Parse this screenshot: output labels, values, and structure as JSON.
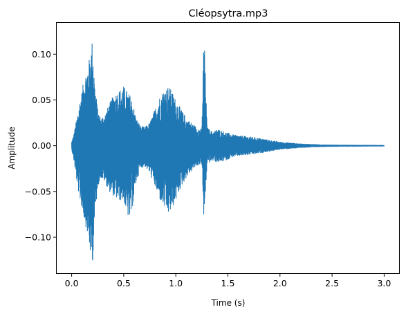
{
  "chart_data": {
    "type": "line",
    "title": "Cléopsytra.mp3",
    "xlabel": "Time (s)",
    "ylabel": "Amplitude",
    "xlim": [
      -0.15,
      3.15
    ],
    "ylim": [
      -0.14,
      0.135
    ],
    "xticks": [
      {
        "value": 0.0,
        "label": "0.0"
      },
      {
        "value": 0.5,
        "label": "0.5"
      },
      {
        "value": 1.0,
        "label": "1.0"
      },
      {
        "value": 1.5,
        "label": "1.5"
      },
      {
        "value": 2.0,
        "label": "2.0"
      },
      {
        "value": 2.5,
        "label": "2.5"
      },
      {
        "value": 3.0,
        "label": "3.0"
      }
    ],
    "yticks": [
      {
        "value": -0.1,
        "label": "−0.10"
      },
      {
        "value": -0.05,
        "label": "−0.05"
      },
      {
        "value": 0.0,
        "label": "0.00"
      },
      {
        "value": 0.05,
        "label": "0.05"
      },
      {
        "value": 0.1,
        "label": "0.10"
      }
    ],
    "grid": false,
    "legend": "none",
    "series": [
      {
        "color": "#1f77b4",
        "envelope": {
          "t": [
            0.0,
            0.02,
            0.05,
            0.08,
            0.1,
            0.12,
            0.15,
            0.18,
            0.2,
            0.22,
            0.25,
            0.28,
            0.32,
            0.36,
            0.4,
            0.45,
            0.5,
            0.53,
            0.56,
            0.58,
            0.62,
            0.66,
            0.7,
            0.75,
            0.8,
            0.85,
            0.9,
            0.93,
            0.96,
            1.0,
            1.05,
            1.1,
            1.15,
            1.2,
            1.25,
            1.27,
            1.3,
            1.35,
            1.4,
            1.45,
            1.5,
            1.55,
            1.6,
            1.7,
            1.8,
            1.9,
            2.0,
            2.1,
            2.2,
            2.3,
            2.4,
            2.5,
            2.7,
            3.0
          ],
          "upper": [
            0.004,
            0.012,
            0.03,
            0.05,
            0.06,
            0.075,
            0.085,
            0.1,
            0.118,
            0.07,
            0.04,
            0.03,
            0.035,
            0.045,
            0.055,
            0.06,
            0.065,
            0.06,
            0.055,
            0.05,
            0.03,
            0.022,
            0.02,
            0.025,
            0.04,
            0.055,
            0.063,
            0.065,
            0.06,
            0.05,
            0.04,
            0.03,
            0.025,
            0.02,
            0.018,
            0.127,
            0.02,
            0.015,
            0.018,
            0.016,
            0.014,
            0.012,
            0.011,
            0.01,
            0.008,
            0.006,
            0.004,
            0.003,
            0.002,
            0.0015,
            0.001,
            0.0008,
            0.0006,
            0.0004
          ],
          "lower": [
            -0.004,
            -0.015,
            -0.04,
            -0.06,
            -0.07,
            -0.08,
            -0.095,
            -0.12,
            -0.13,
            -0.085,
            -0.045,
            -0.035,
            -0.04,
            -0.05,
            -0.055,
            -0.06,
            -0.06,
            -0.075,
            -0.082,
            -0.07,
            -0.04,
            -0.025,
            -0.022,
            -0.03,
            -0.045,
            -0.06,
            -0.07,
            -0.075,
            -0.07,
            -0.06,
            -0.045,
            -0.035,
            -0.028,
            -0.022,
            -0.02,
            -0.085,
            -0.02,
            -0.016,
            -0.018,
            -0.017,
            -0.015,
            -0.012,
            -0.011,
            -0.01,
            -0.008,
            -0.006,
            -0.004,
            -0.003,
            -0.002,
            -0.0015,
            -0.001,
            -0.0008,
            -0.0006,
            -0.0004
          ]
        }
      }
    ]
  }
}
